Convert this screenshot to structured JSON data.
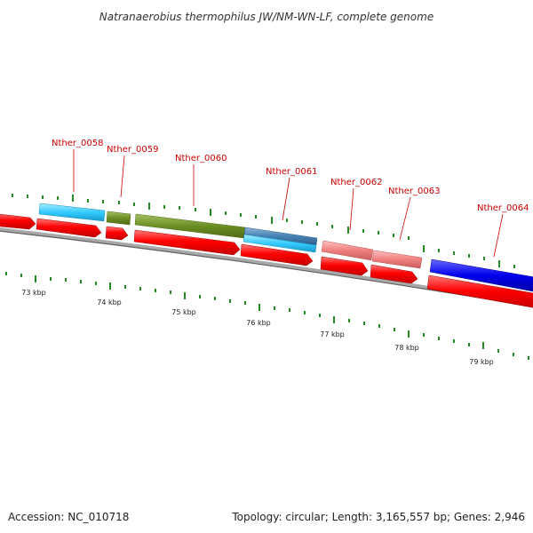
{
  "title": "Natranaerobius thermophilus JW/NM-WN-LF, complete genome",
  "footer": {
    "accession": "Accession: NC_010718",
    "summary": "Topology: circular; Length: 3,165,557 bp; Genes: 2,946"
  },
  "kbp_labels": [
    "73 kbp",
    "74 kbp",
    "75 kbp",
    "76 kbp",
    "77 kbp",
    "78 kbp",
    "79 kbp"
  ],
  "gene_labels": [
    "Nther_0058",
    "Nther_0059",
    "Nther_0060",
    "Nther_0061",
    "Nther_0062",
    "Nther_0063",
    "Nther_0064"
  ],
  "colors": {
    "cds_red": "#ff0000",
    "cyan": "#33ccff",
    "olive": "#6b8e23",
    "steel_blue": "#4682b4",
    "pink": "#f08080",
    "blue": "#0000ee",
    "tick_green": "#228b22",
    "backbone_gray": "#808080",
    "label_red": "#cc0000"
  }
}
